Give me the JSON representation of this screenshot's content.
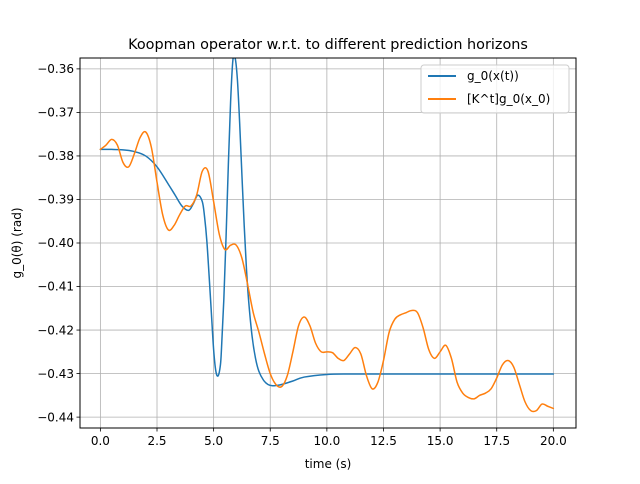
{
  "chart_data": {
    "type": "line",
    "title": "Koopman operator w.r.t. to different prediction horizons",
    "xlabel": "time (s)",
    "ylabel": "g_0(θ) (rad)",
    "xlim": [
      -0.9,
      21.0
    ],
    "ylim": [
      -0.4425,
      -0.3575
    ],
    "xticks": [
      0,
      2.5,
      5,
      7.5,
      10,
      12.5,
      15,
      17.5,
      20
    ],
    "xtick_labels": [
      "0.0",
      "2.5",
      "5.0",
      "7.5",
      "10.0",
      "12.5",
      "15.0",
      "17.5",
      "20.0"
    ],
    "yticks": [
      -0.36,
      -0.37,
      -0.38,
      -0.39,
      -0.4,
      -0.41,
      -0.42,
      -0.43,
      -0.44
    ],
    "ytick_labels": [
      "−0.36",
      "−0.37",
      "−0.38",
      "−0.39",
      "−0.40",
      "−0.41",
      "−0.42",
      "−0.43",
      "−0.44"
    ],
    "grid": true,
    "legend_position": "top-right",
    "series": [
      {
        "name": "g_0(x(t))",
        "color": "#1f77b4",
        "x": [
          0,
          0.5,
          1.0,
          1.5,
          2.0,
          2.5,
          3.0,
          3.3,
          3.6,
          3.9,
          4.1,
          4.3,
          4.5,
          4.6,
          4.7,
          4.8,
          4.9,
          5.0,
          5.1,
          5.2,
          5.3,
          5.35,
          5.45,
          5.55,
          5.65,
          5.75,
          5.85,
          5.95,
          6.05,
          6.15,
          6.25,
          6.35,
          6.45,
          6.55,
          6.7,
          6.85,
          7.0,
          7.2,
          7.4,
          7.6,
          7.8,
          8.0,
          8.5,
          9.0,
          10.0,
          11.0,
          12.0,
          14.0,
          16.0,
          18.0,
          20.0
        ],
        "y": [
          -0.3785,
          -0.3785,
          -0.3786,
          -0.379,
          -0.38,
          -0.3825,
          -0.3865,
          -0.389,
          -0.3915,
          -0.3925,
          -0.391,
          -0.389,
          -0.3905,
          -0.394,
          -0.3995,
          -0.4075,
          -0.416,
          -0.4245,
          -0.4295,
          -0.4305,
          -0.428,
          -0.424,
          -0.413,
          -0.3985,
          -0.382,
          -0.3675,
          -0.358,
          -0.3575,
          -0.3625,
          -0.3725,
          -0.3845,
          -0.396,
          -0.406,
          -0.4135,
          -0.4215,
          -0.4265,
          -0.4295,
          -0.4315,
          -0.4325,
          -0.4328,
          -0.4327,
          -0.4325,
          -0.4317,
          -0.4308,
          -0.4302,
          -0.4301,
          -0.4301,
          -0.4301,
          -0.4301,
          -0.4301,
          -0.4301
        ]
      },
      {
        "name": "[K^t]g_0(x_0)",
        "color": "#ff7f0e",
        "x": [
          0,
          0.25,
          0.5,
          0.75,
          1.0,
          1.25,
          1.5,
          1.75,
          2.0,
          2.25,
          2.5,
          2.75,
          3.0,
          3.25,
          3.5,
          3.75,
          4.0,
          4.25,
          4.5,
          4.75,
          5.0,
          5.25,
          5.5,
          5.75,
          6.0,
          6.25,
          6.5,
          6.75,
          7.0,
          7.25,
          7.5,
          7.75,
          8.0,
          8.25,
          8.5,
          8.75,
          9.0,
          9.25,
          9.5,
          9.75,
          10.0,
          10.25,
          10.5,
          10.75,
          11.0,
          11.25,
          11.5,
          11.75,
          12.0,
          12.25,
          12.5,
          12.75,
          13.0,
          13.25,
          13.5,
          13.75,
          14.0,
          14.25,
          14.5,
          14.75,
          15.0,
          15.25,
          15.5,
          15.75,
          16.0,
          16.25,
          16.5,
          16.75,
          17.0,
          17.25,
          17.5,
          17.75,
          18.0,
          18.25,
          18.5,
          18.75,
          19.0,
          19.25,
          19.5,
          19.75,
          20.0
        ],
        "y": [
          -0.3785,
          -0.3775,
          -0.3762,
          -0.3775,
          -0.3815,
          -0.3825,
          -0.3795,
          -0.3758,
          -0.3745,
          -0.378,
          -0.386,
          -0.3935,
          -0.397,
          -0.396,
          -0.3935,
          -0.3915,
          -0.3915,
          -0.389,
          -0.3835,
          -0.3835,
          -0.3905,
          -0.398,
          -0.4015,
          -0.4005,
          -0.4005,
          -0.4035,
          -0.4095,
          -0.416,
          -0.4205,
          -0.4255,
          -0.43,
          -0.4325,
          -0.433,
          -0.4305,
          -0.425,
          -0.419,
          -0.417,
          -0.419,
          -0.423,
          -0.425,
          -0.425,
          -0.4252,
          -0.4265,
          -0.427,
          -0.4255,
          -0.424,
          -0.4255,
          -0.4305,
          -0.4335,
          -0.432,
          -0.427,
          -0.4205,
          -0.4175,
          -0.4165,
          -0.416,
          -0.4155,
          -0.416,
          -0.4195,
          -0.4245,
          -0.4265,
          -0.425,
          -0.4235,
          -0.4265,
          -0.432,
          -0.4345,
          -0.4355,
          -0.4358,
          -0.435,
          -0.4345,
          -0.4335,
          -0.431,
          -0.428,
          -0.427,
          -0.4285,
          -0.4325,
          -0.4365,
          -0.4385,
          -0.4385,
          -0.437,
          -0.4375,
          -0.438
        ]
      }
    ]
  }
}
